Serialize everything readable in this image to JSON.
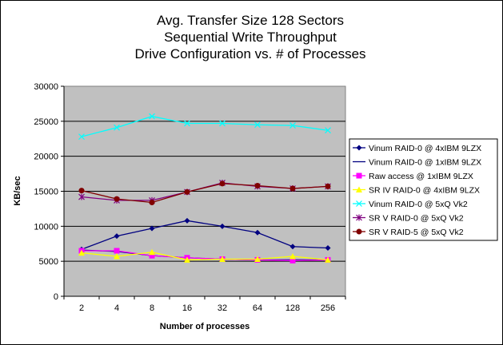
{
  "chart_data": {
    "type": "line",
    "title_lines": [
      "Avg. Transfer Size 128 Sectors",
      "Sequential Write Throughput",
      "Drive Configuration vs. # of Processes"
    ],
    "xlabel": "Number of processes",
    "ylabel": "KB/sec",
    "categories": [
      "2",
      "4",
      "8",
      "16",
      "32",
      "64",
      "128",
      "256"
    ],
    "ylim": [
      0,
      30000
    ],
    "yticks": [
      0,
      5000,
      10000,
      15000,
      20000,
      25000,
      30000
    ],
    "grid": "horizontal",
    "plot_background": "#c0c0c0",
    "legend_position": "right",
    "series": [
      {
        "name": "Vinum RAID-0 @ 4xIBM 9LZX",
        "color": "#000080",
        "marker": "diamond",
        "values": [
          6700,
          8600,
          9700,
          10800,
          10000,
          9100,
          7100,
          6900
        ]
      },
      {
        "name": "Vinum RAID-0 @ 1xIBM 9LZX",
        "color": "#000080",
        "marker": "none",
        "values": [
          6600,
          6400,
          5800,
          5500,
          5300,
          5200,
          5200,
          5200
        ]
      },
      {
        "name": "Raw access @ 1xIBM 9LZX",
        "color": "#ff00ff",
        "marker": "square",
        "values": [
          6500,
          6500,
          5800,
          5500,
          5300,
          5200,
          5100,
          5200
        ]
      },
      {
        "name": "SR IV RAID-0 @ 4xIBM 9LZX",
        "color": "#ffff00",
        "marker": "triangle",
        "values": [
          6200,
          5700,
          6300,
          5200,
          5300,
          5300,
          5700,
          5200
        ]
      },
      {
        "name": "Vinum RAID-0 @ 5xQ Vk2",
        "color": "#00ffff",
        "marker": "x",
        "values": [
          22800,
          24100,
          25700,
          24700,
          24700,
          24500,
          24400,
          23700
        ]
      },
      {
        "name": "SR V RAID-0 @ 5xQ Vk2",
        "color": "#800080",
        "marker": "star",
        "values": [
          14200,
          13700,
          13700,
          14900,
          16200,
          15700,
          15400,
          15700
        ]
      },
      {
        "name": "SR V RAID-5 @ 5xQ Vk2",
        "color": "#800000",
        "marker": "circle",
        "values": [
          15100,
          13900,
          13400,
          14900,
          16100,
          15800,
          15400,
          15700
        ]
      }
    ]
  }
}
